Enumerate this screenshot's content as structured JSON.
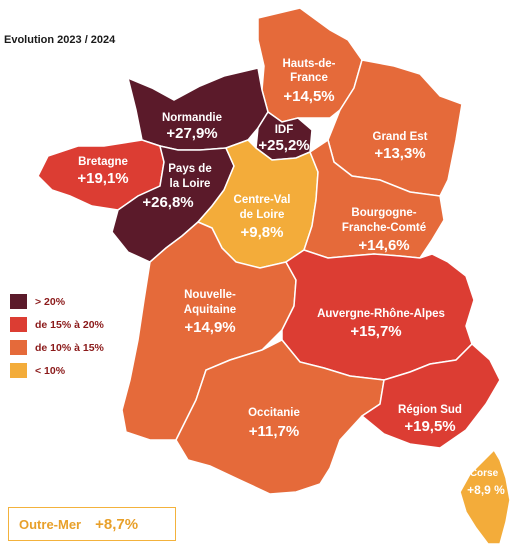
{
  "title": "Evolution 2023 / 2024",
  "colors": {
    "gt20": "#5b1a2a",
    "15to20": "#dc3d33",
    "10to15": "#e56a3a",
    "lt10": "#f3ac3a"
  },
  "legend": [
    {
      "label": "> 20%",
      "color": "#5b1a2a"
    },
    {
      "label": "de 15% à 20%",
      "color": "#dc3d33"
    },
    {
      "label": "de 10% à 15%",
      "color": "#e56a3a"
    },
    {
      "label": "< 10%",
      "color": "#f3ac3a"
    }
  ],
  "regions": {
    "hauts_de_france": {
      "name_line1": "Hauts-de-",
      "name_line2": "France",
      "value": "+14,5%"
    },
    "normandie": {
      "name": "Normandie",
      "value": "+27,9%"
    },
    "idf": {
      "name": "IDF",
      "value": "+25,2%"
    },
    "grand_est": {
      "name": "Grand Est",
      "value": "+13,3%"
    },
    "bretagne": {
      "name": "Bretagne",
      "value": "+19,1%"
    },
    "pays_de_la_loire": {
      "name_line1": "Pays de",
      "name_line2": "la Loire",
      "value": "+26,8%"
    },
    "centre_val_de_loire": {
      "name_line1": "Centre-Val",
      "name_line2": "de Loire",
      "value": "+9,8%"
    },
    "bourgogne_franche_comte": {
      "name_line1": "Bourgogne-",
      "name_line2": "Franche-Comté",
      "value": "+14,6%"
    },
    "nouvelle_aquitaine": {
      "name_line1": "Nouvelle-",
      "name_line2": "Aquitaine",
      "value": "+14,9%"
    },
    "auvergne_rhone_alpes": {
      "name": "Auvergne-Rhône-Alpes",
      "value": "+15,7%"
    },
    "occitanie": {
      "name": "Occitanie",
      "value": "+11,7%"
    },
    "region_sud": {
      "name": "Région Sud",
      "value": "+19,5%"
    },
    "corse": {
      "name": "Corse",
      "value": "+8,9 %"
    }
  },
  "outre_mer": {
    "name": "Outre-Mer",
    "value": "+8,7%"
  }
}
